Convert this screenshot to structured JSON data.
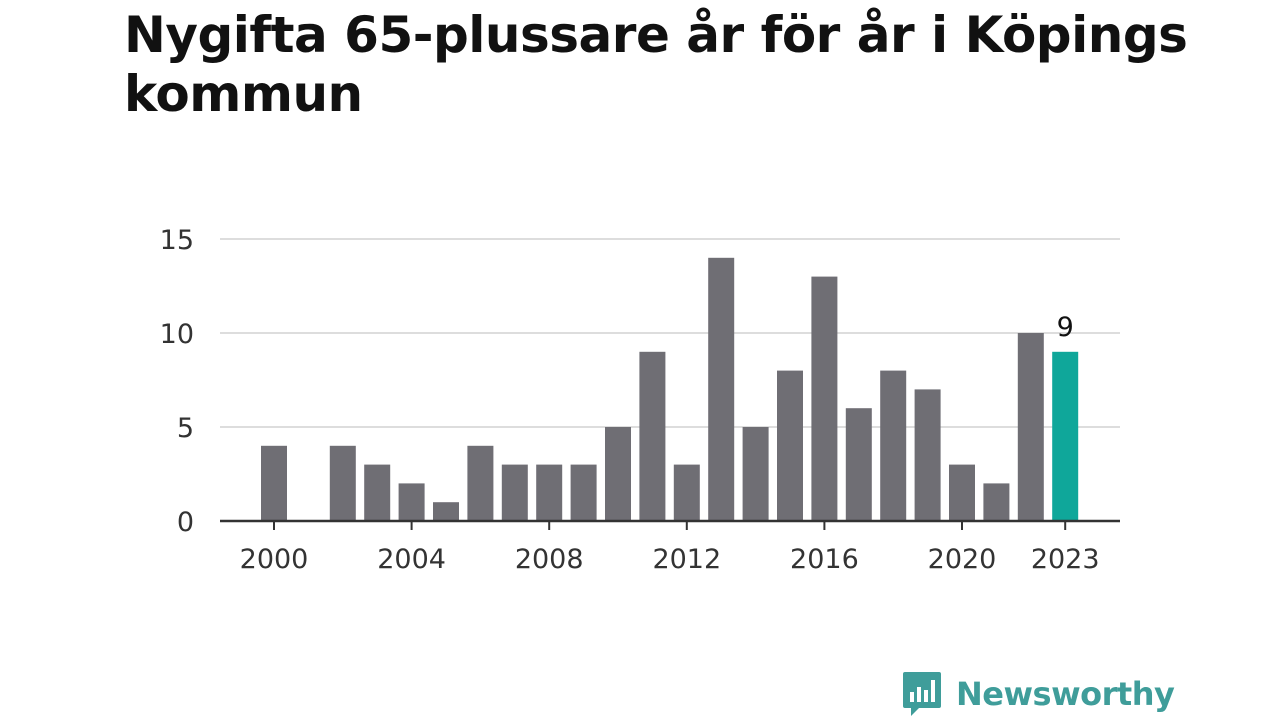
{
  "title": "Nygifta 65-plussare år för år i Köpings kommun",
  "brand": {
    "name": "Newsworthy",
    "icon": "newsworthy-logo-icon",
    "color": "#3f9d9a"
  },
  "colors": {
    "bar": "#6f6e74",
    "highlight": "#0fa79a",
    "grid": "#dddddd",
    "axis": "#333333"
  },
  "chart_data": {
    "type": "bar",
    "title": "Nygifta 65-plussare år för år i Köpings kommun",
    "xlabel": "",
    "ylabel": "",
    "categories": [
      2000,
      2001,
      2002,
      2003,
      2004,
      2005,
      2006,
      2007,
      2008,
      2009,
      2010,
      2011,
      2012,
      2013,
      2014,
      2015,
      2016,
      2017,
      2018,
      2019,
      2020,
      2021,
      2022,
      2023
    ],
    "values": [
      4,
      0,
      4,
      3,
      2,
      1,
      4,
      3,
      3,
      3,
      5,
      9,
      3,
      14,
      5,
      8,
      13,
      6,
      8,
      7,
      3,
      2,
      10,
      9
    ],
    "ylim": [
      0,
      15
    ],
    "yticks": [
      0,
      5,
      10,
      15
    ],
    "xticks": [
      2000,
      2004,
      2008,
      2012,
      2016,
      2020,
      2023
    ],
    "grid": true,
    "highlight": {
      "category": 2023,
      "label": "9"
    }
  }
}
